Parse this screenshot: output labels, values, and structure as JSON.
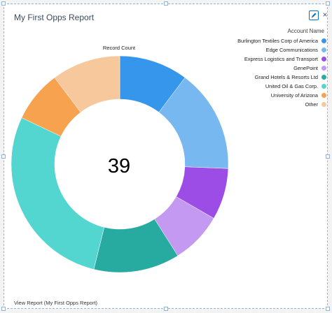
{
  "widget": {
    "title": "My First Opps Report",
    "edit_icon": "pencil-icon",
    "close_icon": "close-icon",
    "close_label": "×",
    "footer_link": "View Report (My First Opps Report)"
  },
  "chart_data": {
    "type": "donut",
    "title": "Record Count",
    "center_value": "39",
    "legend_title": "Account Name",
    "legend_position": "top-right",
    "slices": [
      {
        "label": "Burlington Textiles Corp of America",
        "value": 4,
        "color": "#3696ec"
      },
      {
        "label": "Edge Communications",
        "value": 6,
        "color": "#77b8f0"
      },
      {
        "label": "Express Logistics and Transport",
        "value": 3,
        "color": "#9b4de6"
      },
      {
        "label": "GenePoint",
        "value": 3,
        "color": "#c399f1"
      },
      {
        "label": "Grand Hotels & Resorts Ltd",
        "value": 5,
        "color": "#27aaa0"
      },
      {
        "label": "United Oil & Gas Corp.",
        "value": 11,
        "color": "#52d6cf"
      },
      {
        "label": "University of Arizona",
        "value": 3,
        "color": "#f6a24f"
      },
      {
        "label": "Other",
        "value": 4,
        "color": "#f7c89c"
      }
    ]
  }
}
